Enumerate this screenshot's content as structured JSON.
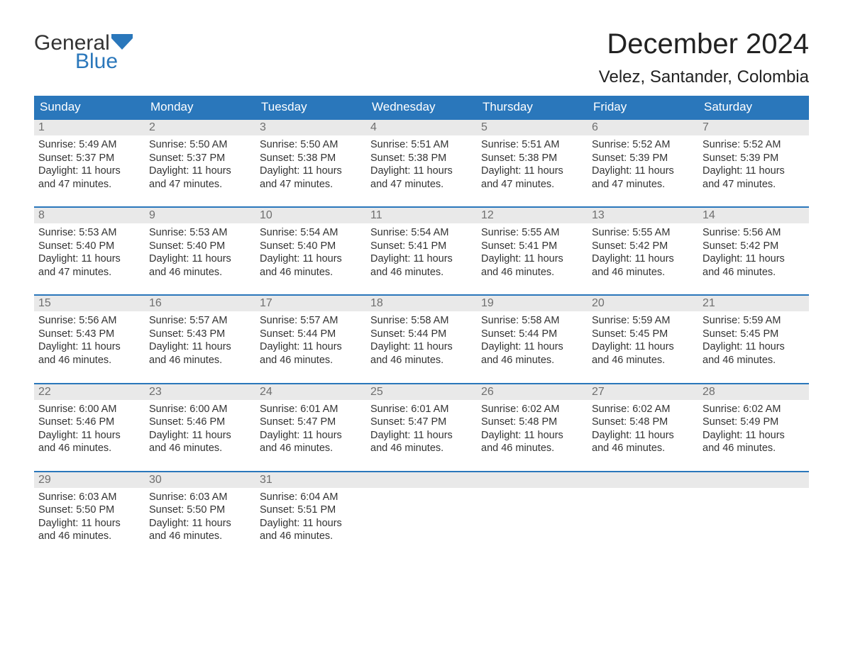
{
  "logo": {
    "text_top": "General",
    "text_bottom": "Blue",
    "accent_color": "#2a77bb"
  },
  "title": "December 2024",
  "location": "Velez, Santander, Colombia",
  "colors": {
    "header_bg": "#2a77bb",
    "header_text": "#ffffff",
    "row_rule": "#2a77bb",
    "daynum_bg": "#e9e9e9",
    "daynum_text": "#6f6f6f",
    "body_text": "#333333",
    "page_bg": "#ffffff"
  },
  "day_headers": [
    "Sunday",
    "Monday",
    "Tuesday",
    "Wednesday",
    "Thursday",
    "Friday",
    "Saturday"
  ],
  "labels": {
    "sunrise": "Sunrise:",
    "sunset": "Sunset:",
    "daylight": "Daylight:"
  },
  "weeks": [
    [
      {
        "n": "1",
        "sunrise": "5:49 AM",
        "sunset": "5:37 PM",
        "daylight": "11 hours and 47 minutes."
      },
      {
        "n": "2",
        "sunrise": "5:50 AM",
        "sunset": "5:37 PM",
        "daylight": "11 hours and 47 minutes."
      },
      {
        "n": "3",
        "sunrise": "5:50 AM",
        "sunset": "5:38 PM",
        "daylight": "11 hours and 47 minutes."
      },
      {
        "n": "4",
        "sunrise": "5:51 AM",
        "sunset": "5:38 PM",
        "daylight": "11 hours and 47 minutes."
      },
      {
        "n": "5",
        "sunrise": "5:51 AM",
        "sunset": "5:38 PM",
        "daylight": "11 hours and 47 minutes."
      },
      {
        "n": "6",
        "sunrise": "5:52 AM",
        "sunset": "5:39 PM",
        "daylight": "11 hours and 47 minutes."
      },
      {
        "n": "7",
        "sunrise": "5:52 AM",
        "sunset": "5:39 PM",
        "daylight": "11 hours and 47 minutes."
      }
    ],
    [
      {
        "n": "8",
        "sunrise": "5:53 AM",
        "sunset": "5:40 PM",
        "daylight": "11 hours and 47 minutes."
      },
      {
        "n": "9",
        "sunrise": "5:53 AM",
        "sunset": "5:40 PM",
        "daylight": "11 hours and 46 minutes."
      },
      {
        "n": "10",
        "sunrise": "5:54 AM",
        "sunset": "5:40 PM",
        "daylight": "11 hours and 46 minutes."
      },
      {
        "n": "11",
        "sunrise": "5:54 AM",
        "sunset": "5:41 PM",
        "daylight": "11 hours and 46 minutes."
      },
      {
        "n": "12",
        "sunrise": "5:55 AM",
        "sunset": "5:41 PM",
        "daylight": "11 hours and 46 minutes."
      },
      {
        "n": "13",
        "sunrise": "5:55 AM",
        "sunset": "5:42 PM",
        "daylight": "11 hours and 46 minutes."
      },
      {
        "n": "14",
        "sunrise": "5:56 AM",
        "sunset": "5:42 PM",
        "daylight": "11 hours and 46 minutes."
      }
    ],
    [
      {
        "n": "15",
        "sunrise": "5:56 AM",
        "sunset": "5:43 PM",
        "daylight": "11 hours and 46 minutes."
      },
      {
        "n": "16",
        "sunrise": "5:57 AM",
        "sunset": "5:43 PM",
        "daylight": "11 hours and 46 minutes."
      },
      {
        "n": "17",
        "sunrise": "5:57 AM",
        "sunset": "5:44 PM",
        "daylight": "11 hours and 46 minutes."
      },
      {
        "n": "18",
        "sunrise": "5:58 AM",
        "sunset": "5:44 PM",
        "daylight": "11 hours and 46 minutes."
      },
      {
        "n": "19",
        "sunrise": "5:58 AM",
        "sunset": "5:44 PM",
        "daylight": "11 hours and 46 minutes."
      },
      {
        "n": "20",
        "sunrise": "5:59 AM",
        "sunset": "5:45 PM",
        "daylight": "11 hours and 46 minutes."
      },
      {
        "n": "21",
        "sunrise": "5:59 AM",
        "sunset": "5:45 PM",
        "daylight": "11 hours and 46 minutes."
      }
    ],
    [
      {
        "n": "22",
        "sunrise": "6:00 AM",
        "sunset": "5:46 PM",
        "daylight": "11 hours and 46 minutes."
      },
      {
        "n": "23",
        "sunrise": "6:00 AM",
        "sunset": "5:46 PM",
        "daylight": "11 hours and 46 minutes."
      },
      {
        "n": "24",
        "sunrise": "6:01 AM",
        "sunset": "5:47 PM",
        "daylight": "11 hours and 46 minutes."
      },
      {
        "n": "25",
        "sunrise": "6:01 AM",
        "sunset": "5:47 PM",
        "daylight": "11 hours and 46 minutes."
      },
      {
        "n": "26",
        "sunrise": "6:02 AM",
        "sunset": "5:48 PM",
        "daylight": "11 hours and 46 minutes."
      },
      {
        "n": "27",
        "sunrise": "6:02 AM",
        "sunset": "5:48 PM",
        "daylight": "11 hours and 46 minutes."
      },
      {
        "n": "28",
        "sunrise": "6:02 AM",
        "sunset": "5:49 PM",
        "daylight": "11 hours and 46 minutes."
      }
    ],
    [
      {
        "n": "29",
        "sunrise": "6:03 AM",
        "sunset": "5:50 PM",
        "daylight": "11 hours and 46 minutes."
      },
      {
        "n": "30",
        "sunrise": "6:03 AM",
        "sunset": "5:50 PM",
        "daylight": "11 hours and 46 minutes."
      },
      {
        "n": "31",
        "sunrise": "6:04 AM",
        "sunset": "5:51 PM",
        "daylight": "11 hours and 46 minutes."
      },
      null,
      null,
      null,
      null
    ]
  ]
}
